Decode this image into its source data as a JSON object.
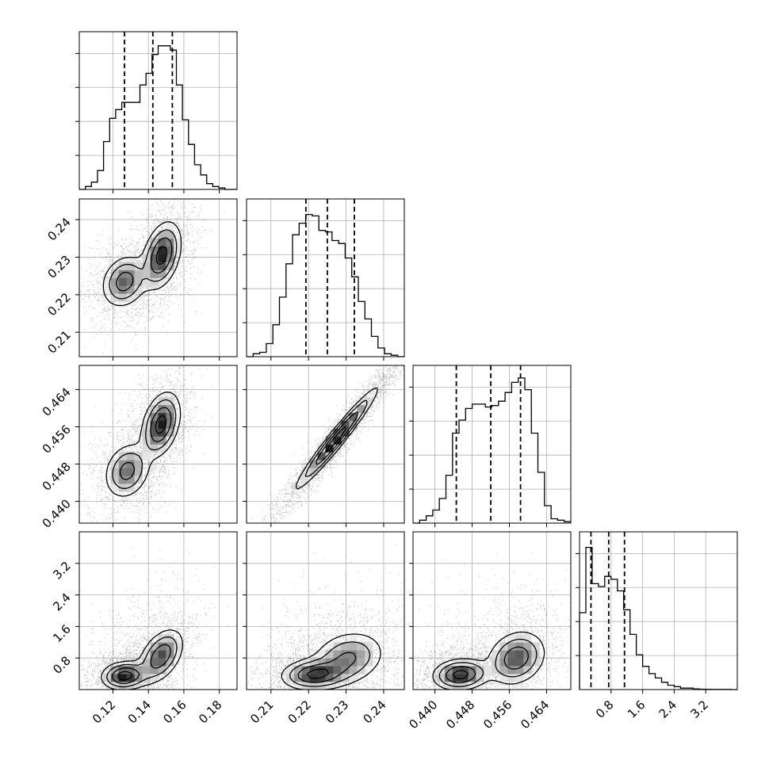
{
  "chart_data": {
    "type": "corner",
    "grid": true,
    "parameters": [
      {
        "range": [
          0.101,
          0.19
        ],
        "ticks": [
          0.12,
          0.14,
          0.16,
          0.18
        ],
        "tick_labels": [
          "0.12",
          "0.14",
          "0.16",
          "0.18"
        ],
        "quantiles": [
          0.1265,
          0.1425,
          0.1535
        ],
        "hist": [
          0,
          0.02,
          0.05,
          0.13,
          0.33,
          0.49,
          0.55,
          0.6,
          0.6,
          0.6,
          0.72,
          0.8,
          0.93,
          0.99,
          0.99,
          0.96,
          0.72,
          0.48,
          0.31,
          0.17,
          0.1,
          0.04,
          0.02,
          0.01,
          0,
          0
        ]
      },
      {
        "range": [
          0.2035,
          0.2455
        ],
        "ticks": [
          0.21,
          0.22,
          0.23,
          0.24
        ],
        "tick_labels": [
          "0.21",
          "0.22",
          "0.23",
          "0.24"
        ],
        "quantiles": [
          0.2193,
          0.225,
          0.2322
        ],
        "hist": [
          0,
          0.02,
          0.03,
          0.09,
          0.22,
          0.41,
          0.64,
          0.84,
          0.92,
          0.98,
          0.97,
          0.87,
          0.86,
          0.8,
          0.78,
          0.68,
          0.55,
          0.38,
          0.26,
          0.14,
          0.06,
          0.02,
          0.01,
          0
        ]
      },
      {
        "range": [
          0.4353,
          0.4692
        ],
        "ticks": [
          0.44,
          0.448,
          0.456,
          0.464
        ],
        "tick_labels": [
          "0.440",
          "0.448",
          "0.456",
          "0.464"
        ],
        "quantiles": [
          0.4446,
          0.452,
          0.4584
        ],
        "hist": [
          0,
          0.02,
          0.05,
          0.09,
          0.17,
          0.33,
          0.62,
          0.71,
          0.79,
          0.82,
          0.82,
          0.8,
          0.81,
          0.84,
          0.9,
          0.97,
          1.0,
          0.92,
          0.62,
          0.35,
          0.12,
          0.03,
          0.02,
          0.01
        ]
      },
      {
        "range": [
          0.0,
          4.0
        ],
        "ticks": [
          0.8,
          1.6,
          2.4,
          3.2
        ],
        "tick_labels": [
          "0.8",
          "1.6",
          "2.4",
          "3.2"
        ],
        "quantiles": [
          0.29,
          0.74,
          1.14
        ],
        "hist": [
          0.53,
          0.98,
          0.73,
          0.71,
          0.78,
          0.76,
          0.68,
          0.55,
          0.38,
          0.24,
          0.16,
          0.11,
          0.08,
          0.05,
          0.03,
          0.02,
          0.01,
          0.01,
          0.005,
          0.003,
          0.002,
          0.001,
          0.001,
          0.001,
          0
        ]
      }
    ],
    "modes": [
      {
        "pair": [
          1,
          0
        ],
        "peaks": [
          {
            "x": 0.1475,
            "y": 0.2305,
            "w": 1.0,
            "sx": 0.0055,
            "sy": 0.0045,
            "rho": 0.35
          },
          {
            "x": 0.1265,
            "y": 0.2235,
            "w": 0.75,
            "sx": 0.0065,
            "sy": 0.0035,
            "rho": 0.2
          }
        ]
      },
      {
        "pair": [
          2,
          0
        ],
        "peaks": [
          {
            "x": 0.147,
            "y": 0.4565,
            "w": 1.0,
            "sx": 0.0055,
            "sy": 0.0035,
            "rho": 0.35
          },
          {
            "x": 0.128,
            "y": 0.4465,
            "w": 0.7,
            "sx": 0.0065,
            "sy": 0.003,
            "rho": 0.2
          }
        ]
      },
      {
        "pair": [
          2,
          1
        ],
        "peaks": [
          {
            "x": 0.2275,
            "y": 0.4535,
            "w": 1.0,
            "sx": 0.0055,
            "sy": 0.0055,
            "rho": 0.97
          }
        ]
      },
      {
        "pair": [
          3,
          0
        ],
        "peaks": [
          {
            "x": 0.147,
            "y": 0.85,
            "w": 0.8,
            "sx": 0.0065,
            "sy": 0.35,
            "rho": 0.45
          },
          {
            "x": 0.1265,
            "y": 0.35,
            "w": 1.0,
            "sx": 0.0065,
            "sy": 0.18,
            "rho": 0.1
          }
        ]
      },
      {
        "pair": [
          3,
          1
        ],
        "peaks": [
          {
            "x": 0.2215,
            "y": 0.38,
            "w": 1.0,
            "sx": 0.0045,
            "sy": 0.2,
            "rho": 0.1
          },
          {
            "x": 0.2305,
            "y": 0.8,
            "w": 0.7,
            "sx": 0.005,
            "sy": 0.35,
            "rho": 0.2
          }
        ]
      },
      {
        "pair": [
          3,
          2
        ],
        "peaks": [
          {
            "x": 0.4455,
            "y": 0.38,
            "w": 1.0,
            "sx": 0.003,
            "sy": 0.2,
            "rho": 0.1
          },
          {
            "x": 0.4575,
            "y": 0.8,
            "w": 0.8,
            "sx": 0.0032,
            "sy": 0.35,
            "rho": 0.2
          }
        ]
      }
    ]
  }
}
